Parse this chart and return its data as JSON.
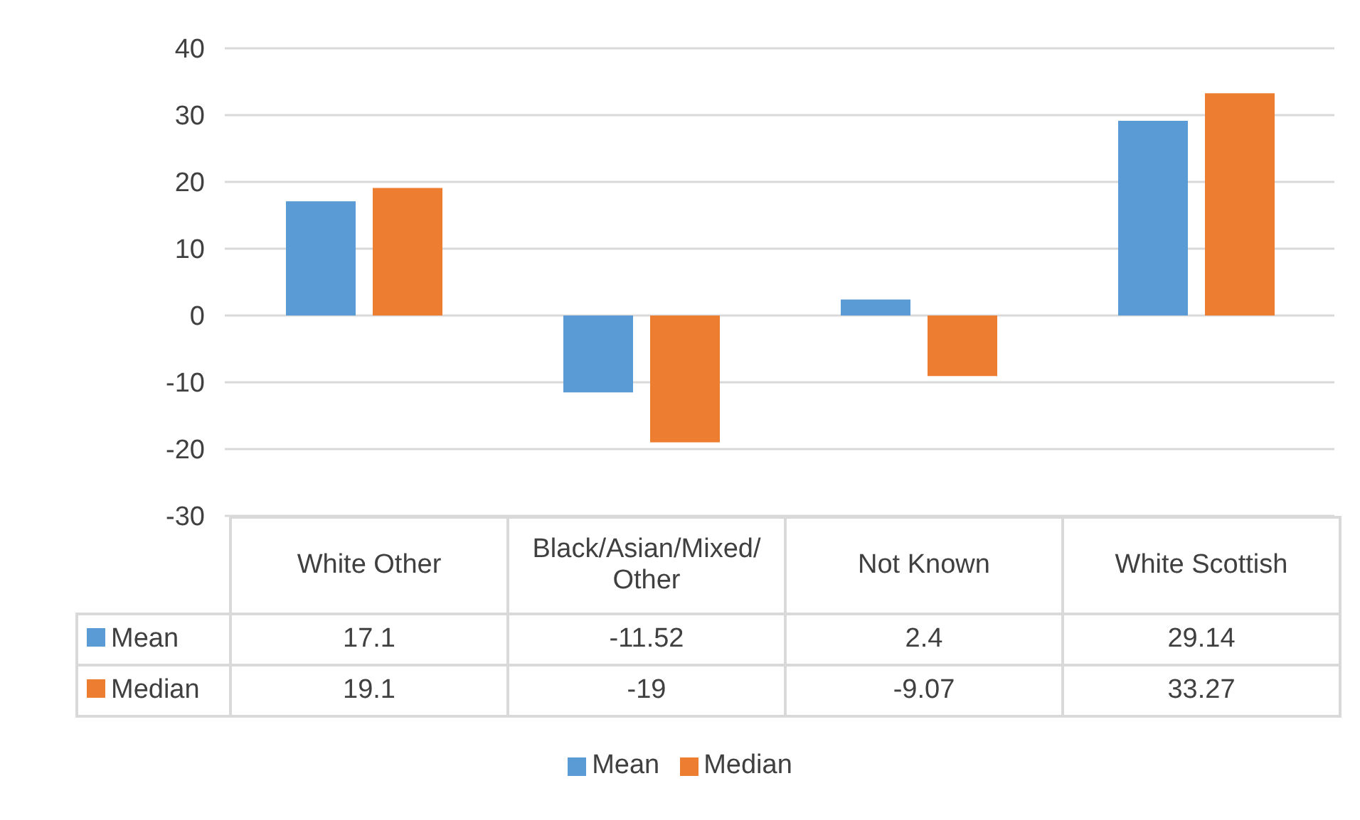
{
  "chart_data": {
    "type": "bar",
    "categories": [
      "White Other",
      "Black/Asian/Mixed/Other",
      "Not Known",
      "White Scottish"
    ],
    "series": [
      {
        "name": "Mean",
        "color": "#5b9bd5",
        "values": [
          17.1,
          -11.52,
          2.4,
          29.14
        ]
      },
      {
        "name": "Median",
        "color": "#ed7d31",
        "values": [
          19.1,
          -19,
          -9.07,
          33.27
        ]
      }
    ],
    "ylim": [
      -30,
      40
    ],
    "yticks": [
      -30,
      -20,
      -10,
      0,
      10,
      20,
      30,
      40
    ],
    "grid": "y",
    "legend": "bottom",
    "data_labels": true
  }
}
